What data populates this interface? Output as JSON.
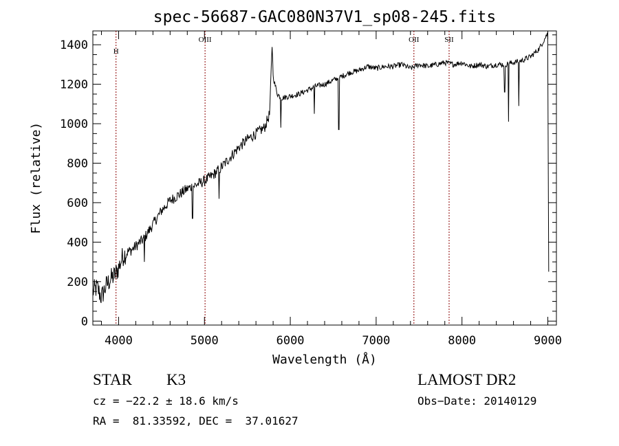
{
  "chart_data": {
    "type": "line",
    "title": "spec-56687-GAC080N37V1_sp08-245.fits",
    "xlabel": "Wavelength (Å)",
    "ylabel": "Flux (relative)",
    "xlim": [
      3700,
      9100
    ],
    "ylim": [
      -20,
      1470
    ],
    "x_ticks": [
      4000,
      5000,
      6000,
      7000,
      8000,
      9000
    ],
    "y_ticks": [
      0,
      200,
      400,
      600,
      800,
      1000,
      1200,
      1400
    ],
    "grid": false,
    "line_color": "#000000",
    "spectrum": {
      "x": [
        3700,
        3750,
        3800,
        3850,
        3900,
        3950,
        4000,
        4050,
        4100,
        4150,
        4200,
        4300,
        4400,
        4500,
        4600,
        4700,
        4800,
        4900,
        5000,
        5100,
        5200,
        5300,
        5400,
        5500,
        5600,
        5700,
        5760,
        5790,
        5800,
        5820,
        5850,
        5900,
        6000,
        6100,
        6200,
        6300,
        6400,
        6500,
        6600,
        6700,
        6800,
        6900,
        7000,
        7100,
        7200,
        7300,
        7400,
        7500,
        7600,
        7700,
        7800,
        7900,
        8000,
        8100,
        8200,
        8300,
        8400,
        8500,
        8600,
        8700,
        8800,
        8900,
        8950,
        9000,
        9010
      ],
      "y": [
        150,
        170,
        120,
        175,
        210,
        230,
        270,
        330,
        350,
        360,
        380,
        420,
        490,
        560,
        610,
        640,
        670,
        690,
        710,
        740,
        780,
        830,
        880,
        920,
        950,
        980,
        1050,
        1420,
        1240,
        1200,
        1150,
        1130,
        1140,
        1150,
        1170,
        1190,
        1200,
        1220,
        1240,
        1260,
        1270,
        1290,
        1280,
        1290,
        1290,
        1300,
        1280,
        1300,
        1290,
        1300,
        1310,
        1300,
        1310,
        1290,
        1300,
        1290,
        1300,
        1300,
        1310,
        1320,
        1340,
        1380,
        1420,
        1460,
        250
      ]
    },
    "absorption_dips": [
      {
        "x": 4300,
        "y": 300
      },
      {
        "x": 4860,
        "y": 520
      },
      {
        "x": 5170,
        "y": 620
      },
      {
        "x": 5890,
        "y": 980
      },
      {
        "x": 6280,
        "y": 1050
      },
      {
        "x": 6563,
        "y": 970
      },
      {
        "x": 8498,
        "y": 1160
      },
      {
        "x": 8542,
        "y": 1010
      },
      {
        "x": 8662,
        "y": 1090
      }
    ],
    "line_markers": [
      {
        "x": 3970,
        "label": "H"
      },
      {
        "x": 5007,
        "label": "OIII"
      },
      {
        "x": 7440,
        "label": "OII"
      },
      {
        "x": 7850,
        "label": "SII"
      }
    ],
    "marker_color": "#8b0000"
  },
  "info": {
    "object_class": "STAR",
    "subclass": "K3",
    "survey": "LAMOST DR2",
    "cz": "cz = −22.2 ± 18.6 km/s",
    "obs_date": "Obs−Date: 20140129",
    "coords": "RA =  81.33592, DEC =  37.01627"
  }
}
